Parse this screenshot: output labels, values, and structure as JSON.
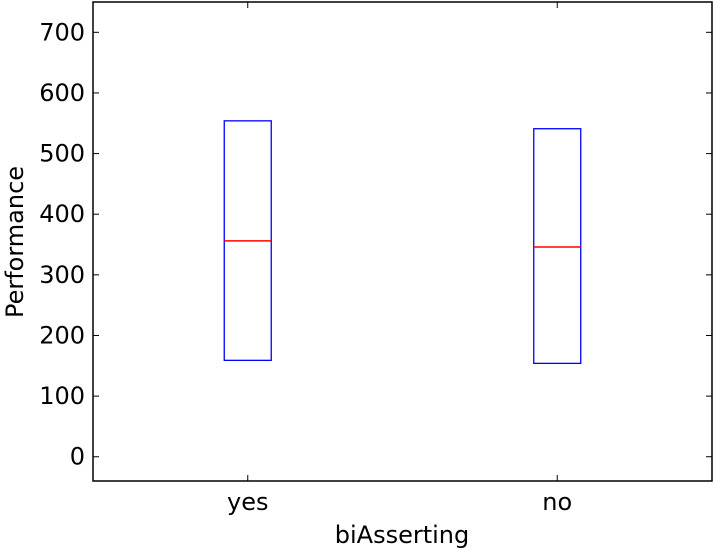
{
  "chart_data": {
    "type": "box",
    "title": "",
    "xlabel": "biAsserting",
    "ylabel": "Performance",
    "categories": [
      "yes",
      "no"
    ],
    "ylim": [
      -40,
      750
    ],
    "yticks": [
      0,
      100,
      200,
      300,
      400,
      500,
      600,
      700
    ],
    "ytick_labels": [
      "0",
      "100",
      "200",
      "300",
      "400",
      "500",
      "600",
      "700"
    ],
    "boxes": [
      {
        "category": "yes",
        "q1": 159,
        "median": 356,
        "q3": 554
      },
      {
        "category": "no",
        "q1": 154,
        "median": 346,
        "q3": 541
      }
    ],
    "grid": false,
    "colors": {
      "box": "#0000ff",
      "median": "#ff0000",
      "axes": "#000000"
    }
  }
}
